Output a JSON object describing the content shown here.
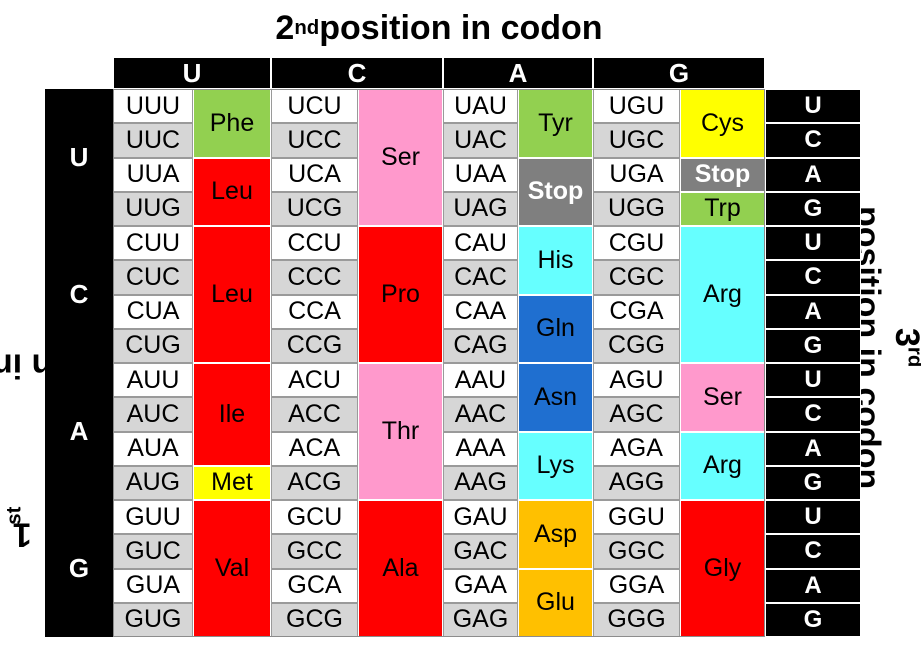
{
  "titles": {
    "top_prefix": "2",
    "top_sup": "nd",
    "top_rest": " position in codon",
    "left_prefix": "1",
    "left_sup": "st",
    "left_rest": " position in codon",
    "right_prefix": "3",
    "right_sup": "rd",
    "right_line1_rest": "",
    "right_line2": "position in codon"
  },
  "second_position": [
    "U",
    "C",
    "A",
    "G"
  ],
  "first_position": [
    "U",
    "C",
    "A",
    "G"
  ],
  "third_position": [
    "U",
    "C",
    "A",
    "G",
    "U",
    "C",
    "A",
    "G",
    "U",
    "C",
    "A",
    "G",
    "U",
    "C",
    "A",
    "G"
  ],
  "codons": [
    [
      "UUU",
      "UCU",
      "UAU",
      "UGU"
    ],
    [
      "UUC",
      "UCC",
      "UAC",
      "UGC"
    ],
    [
      "UUA",
      "UCA",
      "UAA",
      "UGA"
    ],
    [
      "UUG",
      "UCG",
      "UAG",
      "UGG"
    ],
    [
      "CUU",
      "CCU",
      "CAU",
      "CGU"
    ],
    [
      "CUC",
      "CCC",
      "CAC",
      "CGC"
    ],
    [
      "CUA",
      "CCA",
      "CAA",
      "CGA"
    ],
    [
      "CUG",
      "CCG",
      "CAG",
      "CGG"
    ],
    [
      "AUU",
      "ACU",
      "AAU",
      "AGU"
    ],
    [
      "AUC",
      "ACC",
      "AAC",
      "AGC"
    ],
    [
      "AUA",
      "ACA",
      "AAA",
      "AGA"
    ],
    [
      "AUG",
      "ACG",
      "AAG",
      "AGG"
    ],
    [
      "GUU",
      "GCU",
      "GAU",
      "GGU"
    ],
    [
      "GUC",
      "GCC",
      "GAC",
      "GGC"
    ],
    [
      "GUA",
      "GCA",
      "GAA",
      "GGA"
    ],
    [
      "GUG",
      "GCG",
      "GAG",
      "GGG"
    ]
  ],
  "amino_acids": [
    {
      "label": "Phe",
      "col": 0,
      "start": 0,
      "span": 2,
      "color": "#92d050"
    },
    {
      "label": "Leu",
      "col": 0,
      "start": 2,
      "span": 2,
      "color": "#ff0000"
    },
    {
      "label": "Leu",
      "col": 0,
      "start": 4,
      "span": 4,
      "color": "#ff0000"
    },
    {
      "label": "Ile",
      "col": 0,
      "start": 8,
      "span": 3,
      "color": "#ff0000"
    },
    {
      "label": "Met",
      "col": 0,
      "start": 11,
      "span": 1,
      "color": "#ffff00"
    },
    {
      "label": "Val",
      "col": 0,
      "start": 12,
      "span": 4,
      "color": "#ff0000"
    },
    {
      "label": "Ser",
      "col": 1,
      "start": 0,
      "span": 4,
      "color": "#ff99cc"
    },
    {
      "label": "Pro",
      "col": 1,
      "start": 4,
      "span": 4,
      "color": "#ff0000"
    },
    {
      "label": "Thr",
      "col": 1,
      "start": 8,
      "span": 4,
      "color": "#ff99cc"
    },
    {
      "label": "Ala",
      "col": 1,
      "start": 12,
      "span": 4,
      "color": "#ff0000"
    },
    {
      "label": "Tyr",
      "col": 2,
      "start": 0,
      "span": 2,
      "color": "#92d050"
    },
    {
      "label": "Stop",
      "col": 2,
      "start": 2,
      "span": 2,
      "color": "#7f7f7f",
      "stop": true
    },
    {
      "label": "His",
      "col": 2,
      "start": 4,
      "span": 2,
      "color": "#66ffff"
    },
    {
      "label": "Gln",
      "col": 2,
      "start": 6,
      "span": 2,
      "color": "#1f6fd0"
    },
    {
      "label": "Asn",
      "col": 2,
      "start": 8,
      "span": 2,
      "color": "#1f6fd0"
    },
    {
      "label": "Lys",
      "col": 2,
      "start": 10,
      "span": 2,
      "color": "#66ffff"
    },
    {
      "label": "Asp",
      "col": 2,
      "start": 12,
      "span": 2,
      "color": "#ffc000"
    },
    {
      "label": "Glu",
      "col": 2,
      "start": 14,
      "span": 2,
      "color": "#ffc000"
    },
    {
      "label": "Cys",
      "col": 3,
      "start": 0,
      "span": 2,
      "color": "#ffff00"
    },
    {
      "label": "Stop",
      "col": 3,
      "start": 2,
      "span": 1,
      "color": "#7f7f7f",
      "stop": true
    },
    {
      "label": "Trp",
      "col": 3,
      "start": 3,
      "span": 1,
      "color": "#92d050"
    },
    {
      "label": "Arg",
      "col": 3,
      "start": 4,
      "span": 4,
      "color": "#66ffff"
    },
    {
      "label": "Ser",
      "col": 3,
      "start": 8,
      "span": 2,
      "color": "#ff99cc"
    },
    {
      "label": "Arg",
      "col": 3,
      "start": 10,
      "span": 2,
      "color": "#66ffff"
    },
    {
      "label": "Gly",
      "col": 3,
      "start": 12,
      "span": 4,
      "color": "#ff0000"
    }
  ]
}
